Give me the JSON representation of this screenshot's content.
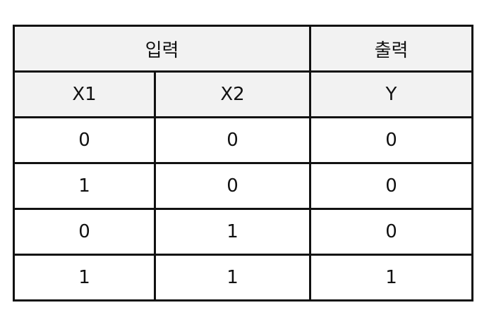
{
  "table": {
    "group_headers": [
      {
        "label": "입력",
        "span": 2
      },
      {
        "label": "출력",
        "span": 1
      }
    ],
    "columns": [
      "X1",
      "X2",
      "Y"
    ],
    "rows": [
      [
        "0",
        "0",
        "0"
      ],
      [
        "1",
        "0",
        "0"
      ],
      [
        "0",
        "1",
        "0"
      ],
      [
        "1",
        "1",
        "1"
      ]
    ]
  },
  "colors": {
    "header_bg": "#f2f2f2",
    "border": "#111111",
    "text": "#111111"
  }
}
